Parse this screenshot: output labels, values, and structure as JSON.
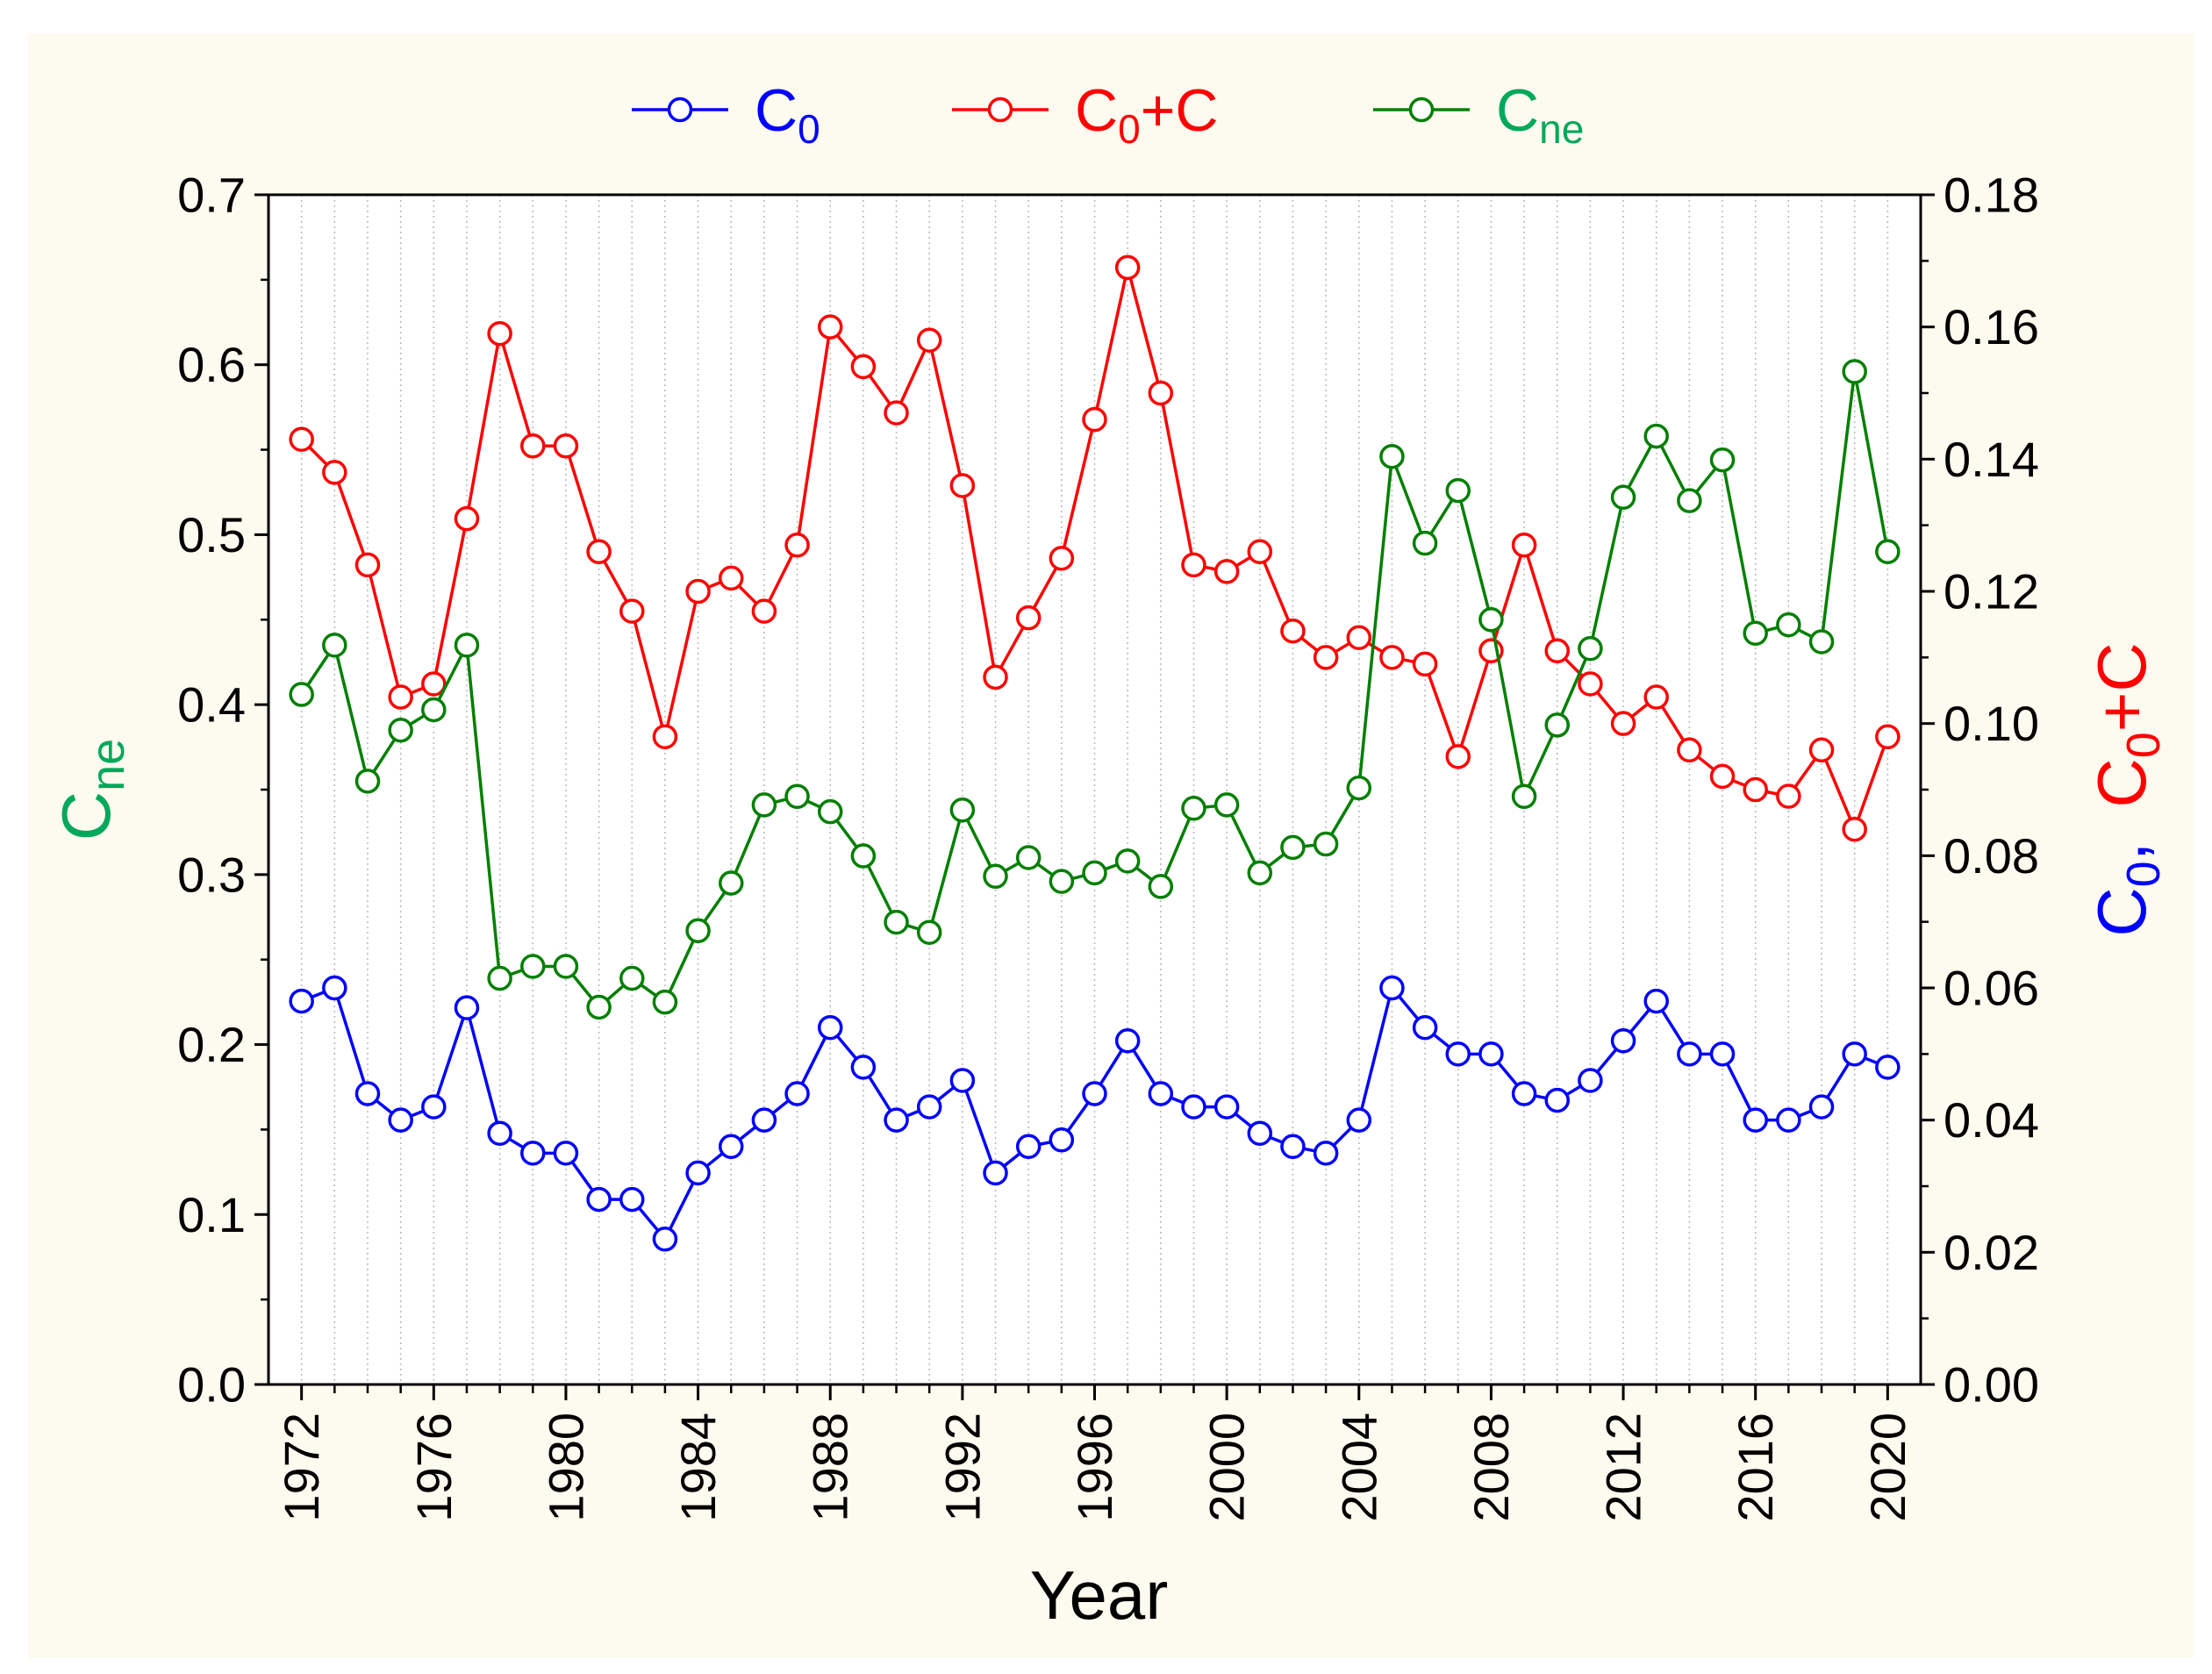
{
  "chart_data": {
    "type": "line",
    "xlabel": "Year",
    "left_axis": {
      "label_main": "C",
      "label_sub": "ne",
      "ylim": [
        0,
        0.7
      ],
      "ticks": [
        "0.0",
        "0.1",
        "0.2",
        "0.3",
        "0.4",
        "0.5",
        "0.6",
        "0.7"
      ]
    },
    "right_axis": {
      "label_parts": [
        {
          "text": "C",
          "sub": "0",
          "color": "#0000ff"
        },
        {
          "text": ",",
          "sub": "",
          "color": "#0000ff"
        },
        {
          "text": "C",
          "sub": "0",
          "color": "#ff0000"
        },
        {
          "text": "+C",
          "sub": "",
          "color": "#ff0000"
        }
      ],
      "ylim": [
        0,
        0.18
      ],
      "ticks": [
        "0.00",
        "0.02",
        "0.04",
        "0.06",
        "0.08",
        "0.10",
        "0.12",
        "0.14",
        "0.16",
        "0.18"
      ]
    },
    "xlim": [
      1971,
      2021
    ],
    "x_ticks": [
      "1972",
      "1976",
      "1980",
      "1984",
      "1988",
      "1992",
      "1996",
      "2000",
      "2004",
      "2008",
      "2012",
      "2016",
      "2020"
    ],
    "x": [
      1972,
      1973,
      1974,
      1975,
      1976,
      1977,
      1978,
      1979,
      1980,
      1981,
      1982,
      1983,
      1984,
      1985,
      1986,
      1987,
      1988,
      1989,
      1990,
      1991,
      1992,
      1993,
      1994,
      1995,
      1996,
      1997,
      1998,
      1999,
      2000,
      2001,
      2002,
      2003,
      2004,
      2005,
      2006,
      2007,
      2008,
      2009,
      2010,
      2011,
      2012,
      2013,
      2014,
      2015,
      2016,
      2017,
      2018,
      2019,
      2020
    ],
    "grid": "vertical-dotted",
    "legend_position": "top-center",
    "colors": {
      "background": "#fdfaef",
      "c0": "#0000ff",
      "c0c": "#ff0000",
      "cne": "#007f00",
      "cne_label": "#00a85a"
    },
    "series": [
      {
        "key": "c0",
        "name_main": "C",
        "name_sub": "0",
        "name_tail": "",
        "axis": "right",
        "color": "#0000ff",
        "values": [
          0.058,
          0.06,
          0.044,
          0.04,
          0.042,
          0.057,
          0.038,
          0.035,
          0.035,
          0.028,
          0.028,
          0.022,
          0.032,
          0.036,
          0.04,
          0.044,
          0.054,
          0.048,
          0.04,
          0.042,
          0.046,
          0.032,
          0.036,
          0.037,
          0.044,
          0.052,
          0.044,
          0.042,
          0.042,
          0.038,
          0.036,
          0.035,
          0.04,
          0.06,
          0.054,
          0.05,
          0.05,
          0.044,
          0.043,
          0.046,
          0.052,
          0.058,
          0.05,
          0.05,
          0.04,
          0.04,
          0.042,
          0.05,
          0.048
        ]
      },
      {
        "key": "c0c",
        "name_main": "C",
        "name_sub": "0",
        "name_tail": "+C",
        "axis": "right",
        "color": "#ff0000",
        "values": [
          0.143,
          0.138,
          0.124,
          0.104,
          0.106,
          0.131,
          0.159,
          0.142,
          0.142,
          0.126,
          0.117,
          0.098,
          0.12,
          0.122,
          0.117,
          0.127,
          0.16,
          0.154,
          0.147,
          0.158,
          0.136,
          0.107,
          0.116,
          0.125,
          0.146,
          0.169,
          0.15,
          0.124,
          0.123,
          0.126,
          0.114,
          0.11,
          0.113,
          0.11,
          0.109,
          0.095,
          0.111,
          0.127,
          0.111,
          0.106,
          0.1,
          0.104,
          0.096,
          0.092,
          0.09,
          0.089,
          0.096,
          0.084,
          0.098
        ]
      },
      {
        "key": "cne",
        "name_main": "C",
        "name_sub": "ne",
        "name_tail": "",
        "axis": "left",
        "color": "#007f00",
        "values": [
          0.406,
          0.435,
          0.355,
          0.385,
          0.397,
          0.435,
          0.239,
          0.246,
          0.246,
          0.222,
          0.239,
          0.225,
          0.267,
          0.295,
          0.341,
          0.346,
          0.337,
          0.311,
          0.272,
          0.266,
          0.338,
          0.299,
          0.31,
          0.296,
          0.301,
          0.308,
          0.293,
          0.339,
          0.341,
          0.301,
          0.316,
          0.318,
          0.351,
          0.546,
          0.495,
          0.526,
          0.45,
          0.346,
          0.388,
          0.433,
          0.522,
          0.558,
          0.52,
          0.544,
          0.442,
          0.447,
          0.437,
          0.596,
          0.49
        ]
      }
    ]
  }
}
